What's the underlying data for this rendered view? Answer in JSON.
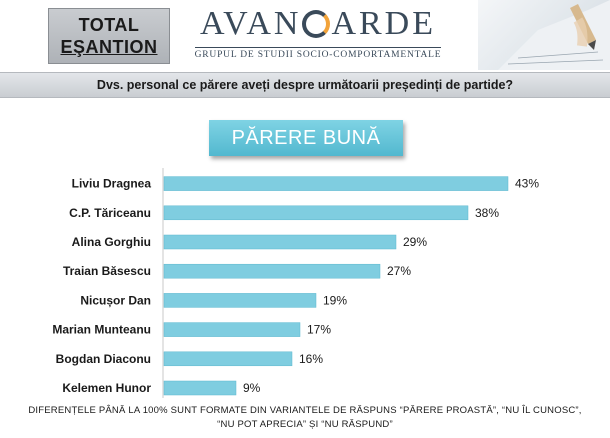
{
  "header": {
    "total_line1": "TOTAL",
    "total_line2": "EŞANTION",
    "logo_text_left": "AVAN",
    "logo_text_right": "ARDE",
    "logo_subtitle": "GRUPUL DE STUDII SOCIO-COMPORTAMENTALE"
  },
  "question": "Dvs. personal ce părere aveți despre următoarii președinți de partide?",
  "category_label": "PĂRERE BUNĂ",
  "chart_data": {
    "type": "bar",
    "orientation": "horizontal",
    "categories": [
      "Liviu Dragnea",
      "C.P. Tăriceanu",
      "Alina Gorghiu",
      "Traian Băsescu",
      "Nicușor Dan",
      "Marian Munteanu",
      "Bogdan Diaconu",
      "Kelemen Hunor"
    ],
    "values": [
      43,
      38,
      29,
      27,
      19,
      17,
      16,
      9
    ],
    "value_labels": [
      "43%",
      "38%",
      "29%",
      "27%",
      "19%",
      "17%",
      "16%",
      "9%"
    ],
    "xlim": [
      0,
      50
    ],
    "grid": false,
    "bar_color": "#7fcde0"
  },
  "footer": {
    "line1": "DIFERENȚELE PÂNĂ LA 100% SUNT FORMATE DIN VARIANTELE DE RĂSPUNS “PĂRERE PROASTĂ”, “NU ÎL CUNOSC”,",
    "line2": "“NU POT APRECIA” ȘI “NU RĂSPUND”"
  }
}
